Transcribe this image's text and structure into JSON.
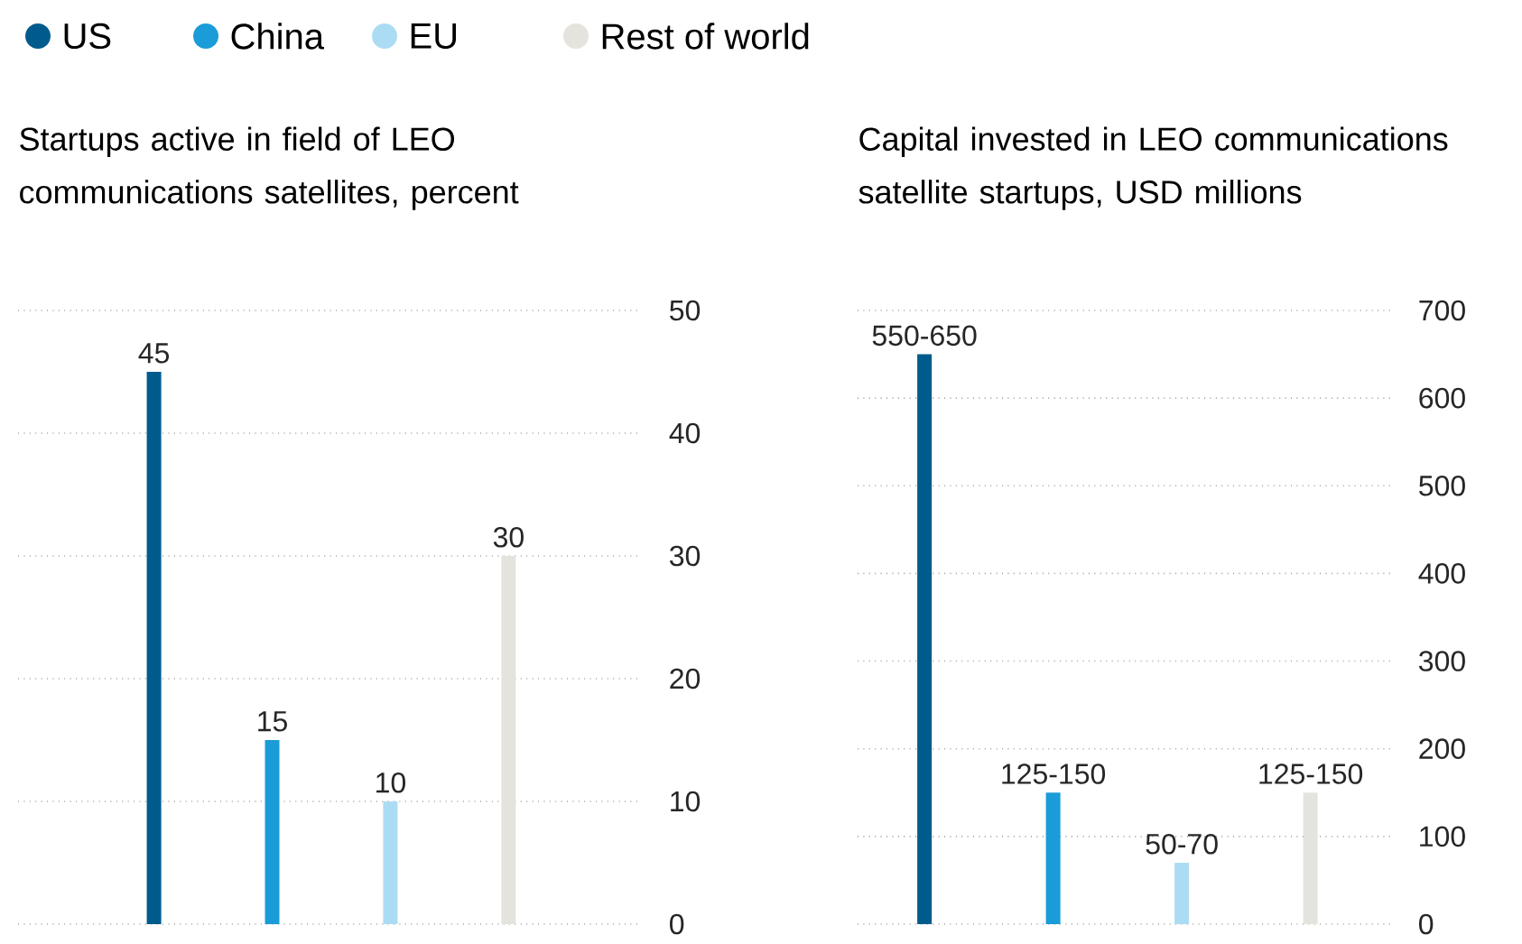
{
  "chart_data": [
    {
      "type": "bar",
      "title": "Startups active in field of LEO communications satellites, percent",
      "categories": [
        null,
        null,
        null,
        null
      ],
      "series": [
        {
          "name": "US",
          "color": "#005b8d",
          "values": [
            45,
            null,
            null,
            null
          ]
        },
        {
          "name": "China",
          "color": "#1a9cd8",
          "values": [
            null,
            15,
            null,
            null
          ]
        },
        {
          "name": "EU",
          "color": "#acdcf4",
          "values": [
            null,
            null,
            10,
            null
          ]
        },
        {
          "name": "Rest of world",
          "color": "#e5e3dd",
          "values": [
            null,
            null,
            null,
            30
          ]
        }
      ],
      "ylim": [
        0,
        50
      ],
      "yticks": [
        0,
        10,
        20,
        30,
        40,
        50
      ],
      "grid": "y",
      "legend": "top",
      "data_labels": true,
      "tick_labels": "y"
    },
    {
      "type": "bar",
      "title": "Capital invested in LEO communications satellite startups, USD millions",
      "categories": [
        null,
        null,
        null,
        null
      ],
      "values": [
        650,
        150,
        70,
        150
      ],
      "colors": [
        "#005b8d",
        "#1a9cd8",
        "#acdcf4",
        "#e5e3dd"
      ],
      "value_labels": [
        "550-650",
        "125-150",
        "50-70",
        "125-150"
      ],
      "ylim": [
        0,
        700
      ],
      "yticks": [
        0,
        100,
        200,
        300,
        400,
        500,
        600,
        700
      ],
      "grid": "y",
      "tick_labels": "y"
    }
  ]
}
